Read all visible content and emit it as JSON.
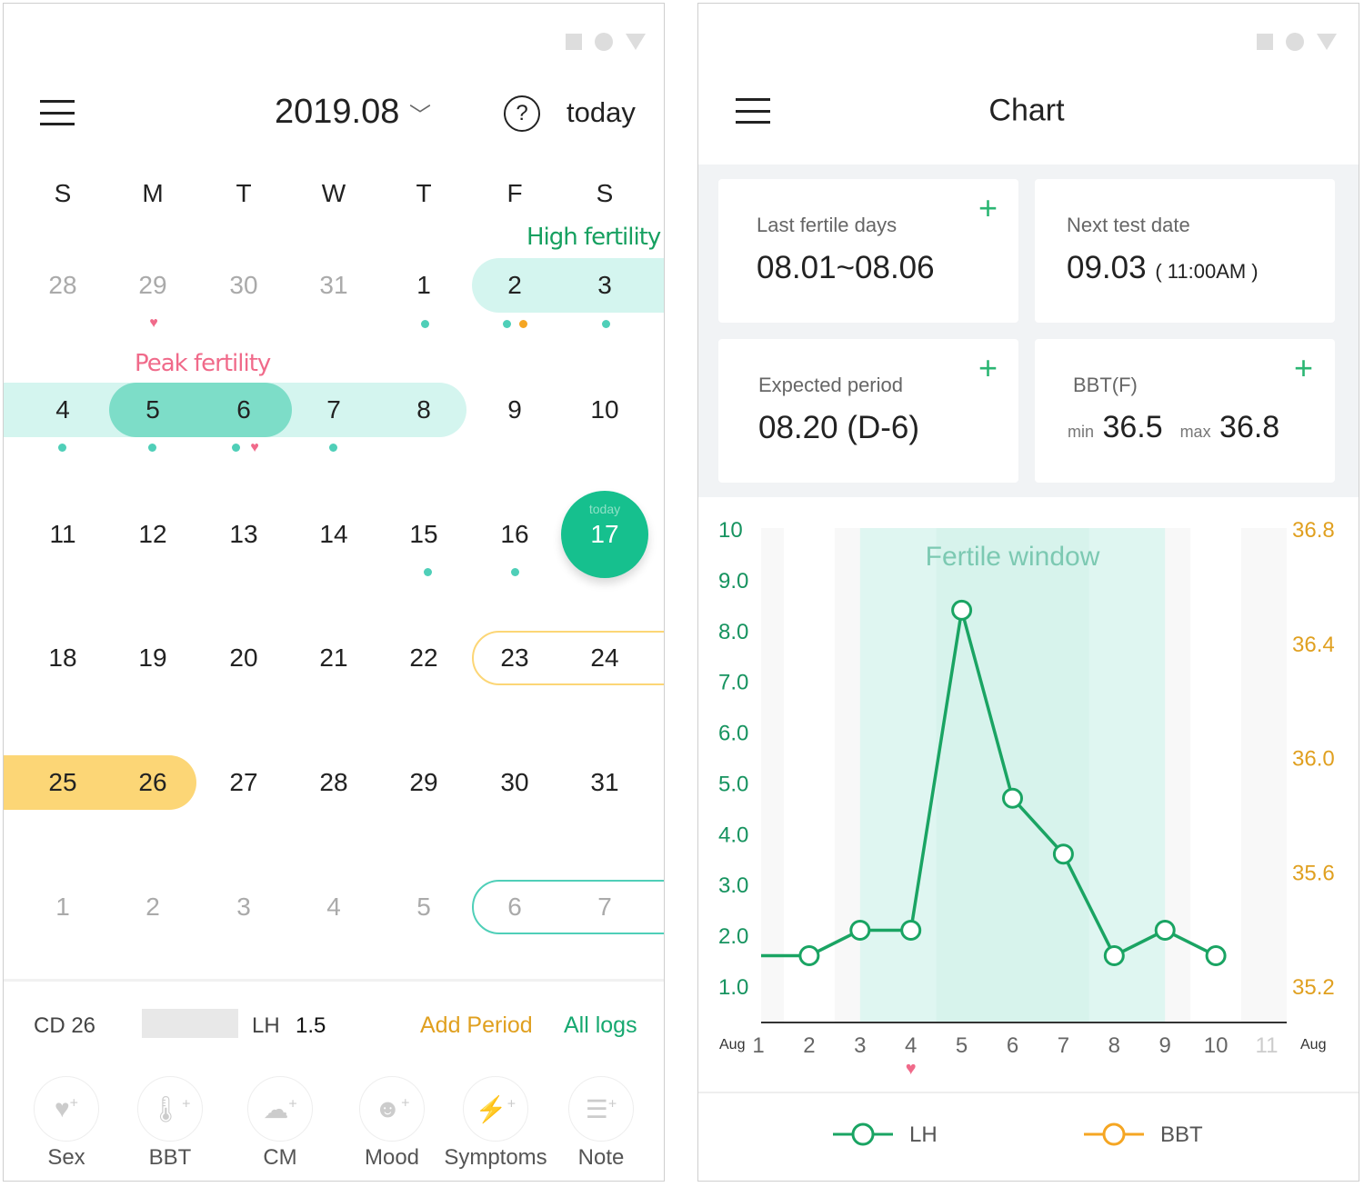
{
  "calendar": {
    "month": "2019.08",
    "today_label": "today",
    "weekdays": [
      "S",
      "M",
      "T",
      "W",
      "T",
      "F",
      "S"
    ],
    "high_fertility_label": "High fertility",
    "peak_fertility_label": "Peak fertility",
    "today_badge": "today",
    "weeks": [
      [
        "28",
        "29",
        "30",
        "31",
        "1",
        "2",
        "3"
      ],
      [
        "4",
        "5",
        "6",
        "7",
        "8",
        "9",
        "10"
      ],
      [
        "11",
        "12",
        "13",
        "14",
        "15",
        "16",
        "17"
      ],
      [
        "18",
        "19",
        "20",
        "21",
        "22",
        "23",
        "24"
      ],
      [
        "25",
        "26",
        "27",
        "28",
        "29",
        "30",
        "31"
      ],
      [
        "1",
        "2",
        "3",
        "4",
        "5",
        "6",
        "7"
      ]
    ],
    "colors": {
      "teal": "#4fcfb8",
      "today": "#16c08e",
      "period": "#fcd676",
      "peak": "#7dddc8",
      "high": "#d4f5ef",
      "heart": "#f06a8a",
      "orange": "#f5a623"
    }
  },
  "summary": {
    "cd": "CD 26",
    "lh_label": "LH",
    "lh_value": "1.5",
    "add_period": "Add Period",
    "all_logs": "All logs"
  },
  "actions": [
    {
      "label": "Sex",
      "icon": "heart-plus-icon"
    },
    {
      "label": "BBT",
      "icon": "thermometer-plus-icon"
    },
    {
      "label": "CM",
      "icon": "cloud-plus-icon"
    },
    {
      "label": "Mood",
      "icon": "smiley-plus-icon"
    },
    {
      "label": "Symptoms",
      "icon": "bolt-plus-icon"
    },
    {
      "label": "Note",
      "icon": "note-plus-icon"
    }
  ],
  "chart_page": {
    "title": "Chart",
    "cards": {
      "last_fertile": {
        "label": "Last fertile days",
        "value": "08.01~08.06"
      },
      "next_test": {
        "label": "Next test date",
        "value": "09.03",
        "time": "( 11:00AM )"
      },
      "expected_period": {
        "label": "Expected period",
        "value": "08.20 (D-6)"
      },
      "bbt": {
        "label": "BBT(F)",
        "min_label": "min",
        "min": "36.5",
        "max_label": "max",
        "max": "36.8"
      }
    }
  },
  "chart_data": {
    "type": "line",
    "annotation": "Fertile window",
    "fertile_window": [
      3,
      9
    ],
    "x": [
      1,
      2,
      3,
      4,
      5,
      6,
      7,
      8,
      9,
      10,
      11
    ],
    "x_tick_labels": [
      "1",
      "2",
      "3",
      "4",
      "5",
      "6",
      "7",
      "8",
      "9",
      "10",
      "11"
    ],
    "x_prefix": "Aug",
    "x_suffix": "Aug",
    "heart_on": 4,
    "y_left": {
      "ticks": [
        "10",
        "9.0",
        "8.0",
        "7.0",
        "6.0",
        "5.0",
        "4.0",
        "3.0",
        "2.0",
        "1.0"
      ],
      "range": [
        1,
        10
      ],
      "color": "#16935f"
    },
    "y_right": {
      "ticks": [
        "36.8",
        "36.4",
        "36.0",
        "35.6",
        "35.2"
      ],
      "range": [
        35.2,
        36.8
      ],
      "color": "#e0a020"
    },
    "series": [
      {
        "name": "LH",
        "color": "#1aa463",
        "x": [
          1,
          2,
          3,
          4,
          5,
          6,
          7,
          8,
          9,
          10
        ],
        "values": [
          1.6,
          1.6,
          2.1,
          2.1,
          8.4,
          4.7,
          3.6,
          1.6,
          2.1,
          1.6
        ]
      },
      {
        "name": "BBT",
        "color": "#f5a623",
        "x": [],
        "values": []
      }
    ],
    "legend": "bottom"
  }
}
